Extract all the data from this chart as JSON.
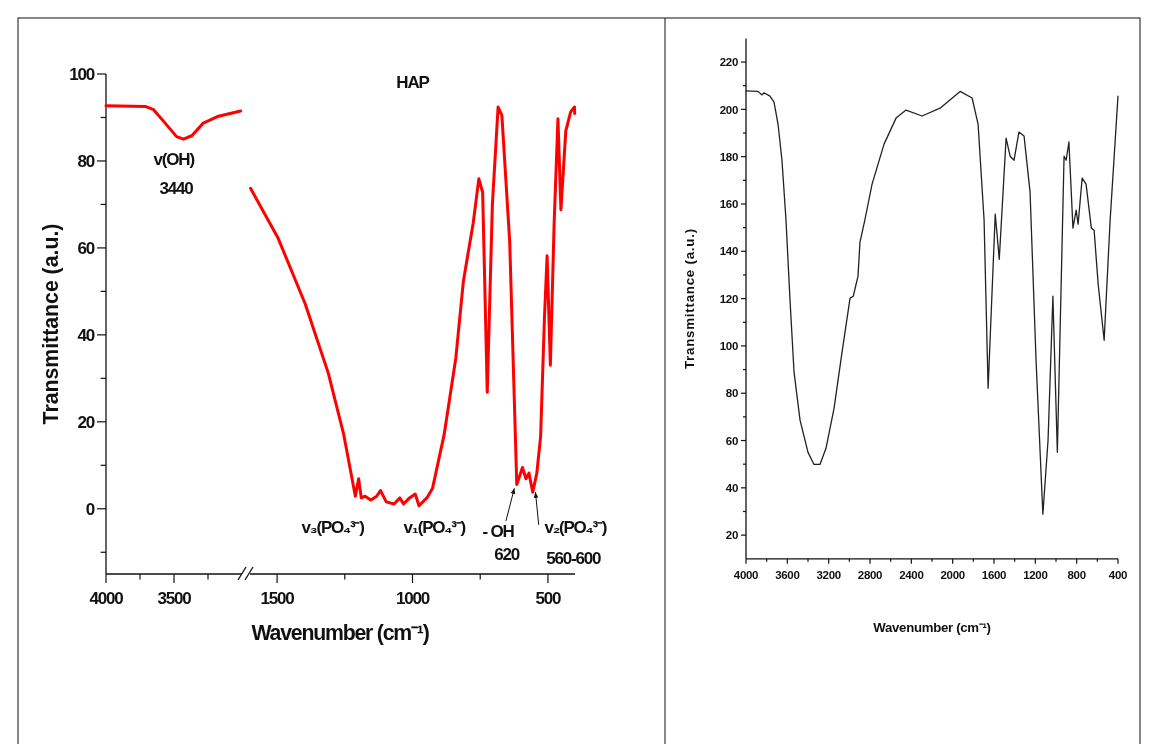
{
  "chart_data": [
    {
      "type": "line",
      "ylabel": "Transmittance (a.u.)",
      "color": "#ff0000",
      "x": [
        4000,
        3706,
        3650,
        3565,
        3481,
        3431,
        3369,
        3285,
        3173,
        3010
      ],
      "values": [
        92.7,
        92.5,
        91.8,
        88.7,
        85.6,
        85.0,
        85.8,
        88.7,
        90.3,
        91.5
      ],
      "xlim": [
        4000,
        3000
      ],
      "xticks": [
        4000,
        3500,
        {
          "value": 3750,
          "label": null
        },
        {
          "value": 3250,
          "label": null
        }
      ],
      "ylim": [
        -15,
        100
      ],
      "yticks": [
        0,
        20,
        40,
        60,
        80,
        100,
        {
          "value": -10,
          "label": null
        },
        {
          "value": 10,
          "label": null
        },
        {
          "value": 30,
          "label": null
        },
        {
          "value": 50,
          "label": null
        },
        {
          "value": 70,
          "label": null
        },
        {
          "value": 90,
          "label": null
        }
      ],
      "annotations": [
        "v(OH)",
        "3440"
      ]
    },
    {
      "type": "line",
      "title": "HAP",
      "xlabel": "Wavenumber (cm⁻¹)",
      "color": "#ff0000",
      "tick_labels": "x",
      "x": [
        1598,
        1496,
        1396,
        1311,
        1254,
        1211,
        1199,
        1189,
        1175,
        1154,
        1132,
        1118,
        1097,
        1068,
        1047,
        1033,
        1011,
        990,
        976,
        947,
        926,
        883,
        840,
        812,
        776,
        755,
        741,
        724,
        705,
        684,
        670,
        641,
        615,
        594,
        581,
        570,
        556,
        541,
        527,
        513,
        503,
        491,
        477,
        463,
        452,
        434,
        416,
        402,
        401
      ],
      "values": [
        73.7,
        62.2,
        47.1,
        31.2,
        17.1,
        2.9,
        6.9,
        2.5,
        2.9,
        2.0,
        2.9,
        4.2,
        1.6,
        1.1,
        2.5,
        1.1,
        2.5,
        3.4,
        0.7,
        2.5,
        4.7,
        17.1,
        34.7,
        52.4,
        65.7,
        75.9,
        72.8,
        26.8,
        70.1,
        92.4,
        90.5,
        61.3,
        5.6,
        9.5,
        6.9,
        8.2,
        3.8,
        8.2,
        16.6,
        43.6,
        58.2,
        33.0,
        65.7,
        89.7,
        68.8,
        86.9,
        91.3,
        92.4,
        90.9
      ],
      "xlim": [
        1600,
        400
      ],
      "xticks": [
        1500,
        1000,
        500,
        {
          "value": 1250,
          "label": null
        },
        {
          "value": 750,
          "label": null
        }
      ],
      "ylim": [
        -15,
        100
      ],
      "annotations": [
        "v₃(PO₄³⁻)",
        "v₁(PO₄³⁻)",
        "- OH",
        "620",
        "v₂(PO₄³⁻)",
        "560-600"
      ]
    },
    {
      "type": "line",
      "xlabel": "Wavenumber (cm⁻¹)",
      "ylabel": "Transmittance (a.u.)",
      "color": "#222222",
      "x": [
        4000,
        3884,
        3845,
        3826,
        3768,
        3729,
        3690,
        3652,
        3613,
        3574,
        3535,
        3477,
        3400,
        3342,
        3284,
        3226,
        3148,
        3071,
        2993,
        2962,
        2916,
        2897,
        2850,
        2780,
        2664,
        2548,
        2451,
        2296,
        2122,
        1928,
        1812,
        1754,
        1696,
        1657,
        1588,
        1549,
        1483,
        1444,
        1406,
        1359,
        1309,
        1251,
        1193,
        1127,
        1077,
        1030,
        987,
        922,
        902,
        875,
        836,
        805,
        786,
        747,
        709,
        658,
        631,
        592,
        534,
        476,
        400
      ],
      "values": [
        207.8,
        207.6,
        206.1,
        207.0,
        205.6,
        203.1,
        193.8,
        178.5,
        153.2,
        119.3,
        88.9,
        68.6,
        55.0,
        49.9,
        49.9,
        56.7,
        73.6,
        97.3,
        120.2,
        121.0,
        129.5,
        143.9,
        153.2,
        168.4,
        185.3,
        196.3,
        199.7,
        197.2,
        200.5,
        207.6,
        204.8,
        193.8,
        153.2,
        82.1,
        155.7,
        136.6,
        187.8,
        180.2,
        178.5,
        190.4,
        188.7,
        165.0,
        93.9,
        28.8,
        60.1,
        121.0,
        55.0,
        180.2,
        178.5,
        186.2,
        149.8,
        157.4,
        151.5,
        170.9,
        168.4,
        149.8,
        148.9,
        126.1,
        102.4,
        153.2,
        205.6
      ],
      "xlim": [
        4000,
        400
      ],
      "xticks": [
        4000,
        3600,
        3200,
        2800,
        2400,
        2000,
        1600,
        1200,
        800,
        400,
        {
          "value": 3800,
          "label": null
        },
        {
          "value": 3400,
          "label": null
        },
        {
          "value": 3000,
          "label": null
        },
        {
          "value": 2600,
          "label": null
        },
        {
          "value": 2200,
          "label": null
        },
        {
          "value": 1800,
          "label": null
        },
        {
          "value": 1400,
          "label": null
        },
        {
          "value": 1000,
          "label": null
        },
        {
          "value": 600,
          "label": null
        }
      ],
      "ylim": [
        10,
        230
      ],
      "yticks": [
        20,
        40,
        60,
        80,
        100,
        120,
        140,
        160,
        180,
        200,
        220,
        {
          "value": 30,
          "label": null
        },
        {
          "value": 50,
          "label": null
        },
        {
          "value": 70,
          "label": null
        },
        {
          "value": 90,
          "label": null
        },
        {
          "value": 110,
          "label": null
        },
        {
          "value": 130,
          "label": null
        },
        {
          "value": 150,
          "label": null
        },
        {
          "value": 170,
          "label": null
        },
        {
          "value": 190,
          "label": null
        },
        {
          "value": 210,
          "label": null
        }
      ]
    }
  ]
}
